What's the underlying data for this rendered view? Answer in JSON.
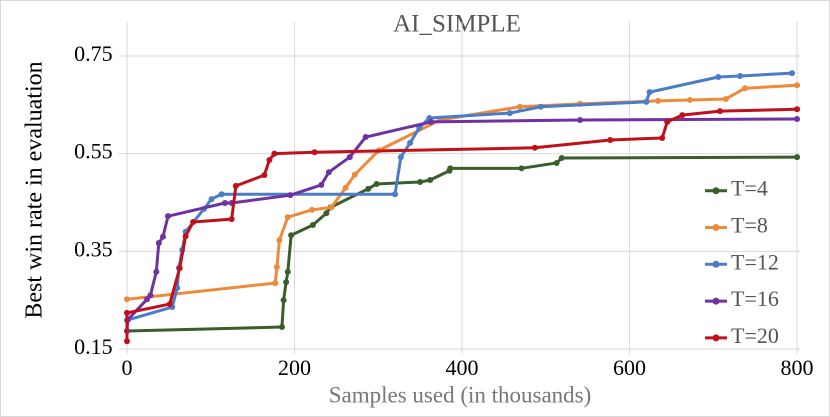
{
  "chart_data": {
    "type": "line",
    "title": "AI_SIMPLE",
    "x_label": "Samples used (in thousands)",
    "y_label": "Best win rate in evaluation",
    "xlim": [
      -10,
      804
    ],
    "ylim": [
      0.14,
      0.82
    ],
    "xticks": [
      0,
      200,
      400,
      600,
      800
    ],
    "yticks": [
      0.15,
      0.35,
      0.55,
      0.75
    ],
    "grid": true,
    "legend": "lower right",
    "series": [
      {
        "name": "T=4",
        "color": "#3a5e2a",
        "x": [
          0,
          185,
          187,
          190,
          192,
          196,
          222,
          238,
          243,
          288,
          298,
          350,
          362,
          385,
          386,
          471,
          513,
          519,
          800
        ],
        "values": [
          0.187,
          0.195,
          0.25,
          0.287,
          0.308,
          0.383,
          0.404,
          0.428,
          0.44,
          0.478,
          0.488,
          0.492,
          0.496,
          0.515,
          0.52,
          0.52,
          0.531,
          0.541,
          0.543
        ]
      },
      {
        "name": "T=8",
        "color": "#ee8a3c",
        "x": [
          0,
          177,
          179,
          182,
          192,
          221,
          244,
          261,
          272,
          301,
          374,
          469,
          541,
          634,
          672,
          715,
          738,
          800
        ],
        "values": [
          0.252,
          0.285,
          0.318,
          0.373,
          0.42,
          0.435,
          0.44,
          0.48,
          0.507,
          0.557,
          0.619,
          0.646,
          0.652,
          0.658,
          0.66,
          0.662,
          0.684,
          0.69
        ]
      },
      {
        "name": "T=12",
        "color": "#4a7cc8",
        "x": [
          0,
          54,
          60,
          62,
          66,
          70,
          92,
          101,
          113,
          320,
          327,
          338,
          349,
          361,
          457,
          494,
          620,
          624,
          706,
          732,
          794
        ],
        "values": [
          0.209,
          0.236,
          0.275,
          0.316,
          0.353,
          0.39,
          0.437,
          0.457,
          0.467,
          0.467,
          0.543,
          0.572,
          0.603,
          0.623,
          0.633,
          0.646,
          0.656,
          0.676,
          0.707,
          0.709,
          0.715
        ]
      },
      {
        "name": "T=16",
        "color": "#6f32a0",
        "x": [
          0,
          1,
          24,
          28,
          35,
          38,
          43,
          49,
          117,
          125,
          195,
          232,
          241,
          266,
          285,
          363,
          541,
          800
        ],
        "values": [
          0.187,
          0.21,
          0.252,
          0.26,
          0.308,
          0.367,
          0.38,
          0.422,
          0.449,
          0.449,
          0.465,
          0.486,
          0.512,
          0.543,
          0.584,
          0.615,
          0.619,
          0.621
        ]
      },
      {
        "name": "T=20",
        "color": "#c0101a",
        "x": [
          0,
          0,
          51,
          63,
          70,
          79,
          125,
          130,
          164,
          170,
          176,
          224,
          487,
          577,
          639,
          645,
          663,
          708,
          800
        ],
        "values": [
          0.166,
          0.224,
          0.242,
          0.316,
          0.381,
          0.41,
          0.416,
          0.484,
          0.506,
          0.537,
          0.55,
          0.553,
          0.562,
          0.578,
          0.582,
          0.615,
          0.629,
          0.637,
          0.641
        ]
      }
    ]
  }
}
